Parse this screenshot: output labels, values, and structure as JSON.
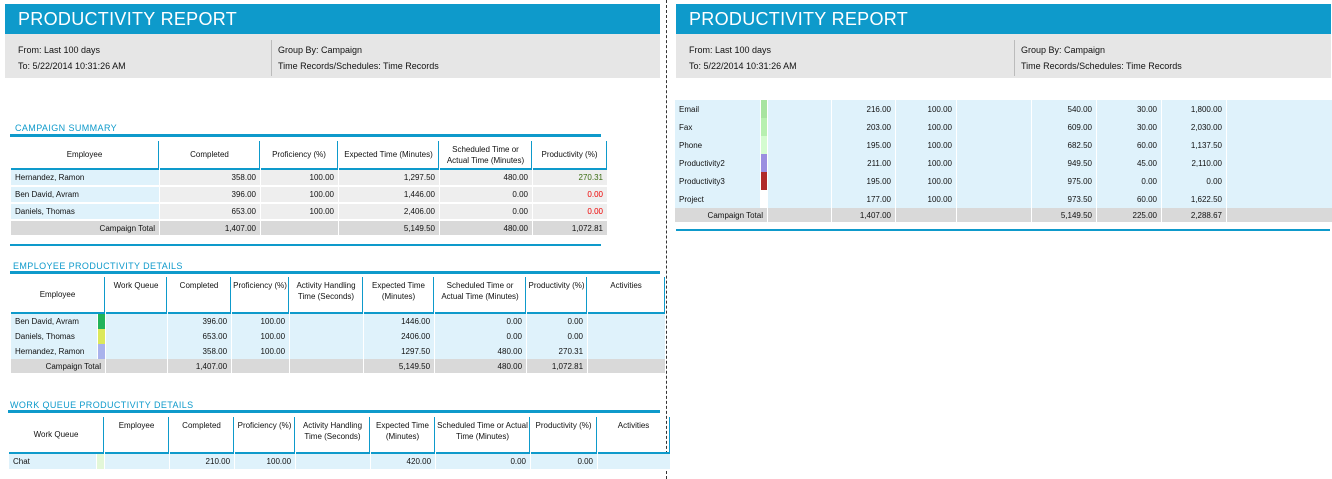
{
  "report": {
    "title": "PRODUCTIVITY REPORT",
    "from": "From: Last 100 days",
    "to": "To: 5/22/2014 10:31:26 AM",
    "group_by": "Group By: Campaign",
    "time_records": "Time Records/Schedules: Time Records"
  },
  "campaign_summary": {
    "title": "CAMPAIGN SUMMARY",
    "columns": [
      "Employee",
      "Completed",
      "Proficiency (%)",
      "Expected Time (Minutes)",
      "Scheduled Time or Actual Time (Minutes)",
      "Productivity (%)"
    ],
    "rows": [
      [
        "Hernandez, Ramon",
        "358.00",
        "100.00",
        "1,297.50",
        "480.00",
        "270.31"
      ],
      [
        "Ben David, Avram",
        "396.00",
        "100.00",
        "1,446.00",
        "0.00",
        "0.00"
      ],
      [
        "Daniels, Thomas",
        "653.00",
        "100.00",
        "2,406.00",
        "0.00",
        "0.00"
      ]
    ],
    "total": [
      "Campaign Total",
      "1,407.00",
      "",
      "5,149.50",
      "480.00",
      "1,072.81"
    ],
    "productivity_colors": [
      "#3a6b12",
      "#ee0000",
      "#ee0000"
    ]
  },
  "employee_details": {
    "title": "EMPLOYEE PRODUCTIVITY DETAILS",
    "columns": [
      "Employee",
      "Work Queue",
      "Completed",
      "Proficiency (%)",
      "Activity Handling Time (Seconds)",
      "Expected Time (Minutes)",
      "Scheduled Time or Actual Time (Minutes)",
      "Productivity (%)",
      "Activities"
    ],
    "rows": [
      [
        "Ben David, Avram",
        "",
        "396.00",
        "100.00",
        "",
        "1446.00",
        "0.00",
        "0.00",
        ""
      ],
      [
        "Daniels, Thomas",
        "",
        "653.00",
        "100.00",
        "",
        "2406.00",
        "0.00",
        "0.00",
        ""
      ],
      [
        "Hernandez, Ramon",
        "",
        "358.00",
        "100.00",
        "",
        "1297.50",
        "480.00",
        "270.31",
        ""
      ]
    ],
    "row_colors": [
      "#22b35a",
      "#dce85a",
      "#a9b2ec"
    ],
    "total": [
      "Campaign Total",
      "",
      "1,407.00",
      "",
      "",
      "5,149.50",
      "480.00",
      "1,072.81",
      ""
    ]
  },
  "work_queue_details": {
    "title": "WORK QUEUE PRODUCTIVITY DETAILS",
    "columns": [
      "Work Queue",
      "Employee",
      "Completed",
      "Proficiency (%)",
      "Activity Handling Time (Seconds)",
      "Expected Time (Minutes)",
      "Scheduled Time or Actual Time (Minutes)",
      "Productivity (%)",
      "Activities"
    ],
    "rows": [
      [
        "Chat",
        "",
        "210.00",
        "100.00",
        "",
        "420.00",
        "0.00",
        "0.00",
        ""
      ]
    ],
    "row_colors": [
      "#e3f7d8"
    ],
    "continued_rows": [
      [
        "Email",
        "",
        "216.00",
        "100.00",
        "",
        "540.00",
        "30.00",
        "1,800.00",
        ""
      ],
      [
        "Fax",
        "",
        "203.00",
        "100.00",
        "",
        "609.00",
        "30.00",
        "2,030.00",
        ""
      ],
      [
        "Phone",
        "",
        "195.00",
        "100.00",
        "",
        "682.50",
        "60.00",
        "1,137.50",
        ""
      ],
      [
        "Productivity2",
        "",
        "211.00",
        "100.00",
        "",
        "949.50",
        "45.00",
        "2,110.00",
        ""
      ],
      [
        "Productivity3",
        "",
        "195.00",
        "100.00",
        "",
        "975.00",
        "0.00",
        "0.00",
        ""
      ],
      [
        "Project",
        "",
        "177.00",
        "100.00",
        "",
        "973.50",
        "60.00",
        "1,622.50",
        ""
      ]
    ],
    "continued_colors": [
      "#a8e4a0",
      "#b7f0b0",
      "#d4fcd0",
      "#9b8fe0",
      "#b02a2a",
      "#ffffff"
    ],
    "total": [
      "Campaign Total",
      "",
      "1,407.00",
      "",
      "",
      "5,149.50",
      "225.00",
      "2,288.67",
      ""
    ]
  }
}
